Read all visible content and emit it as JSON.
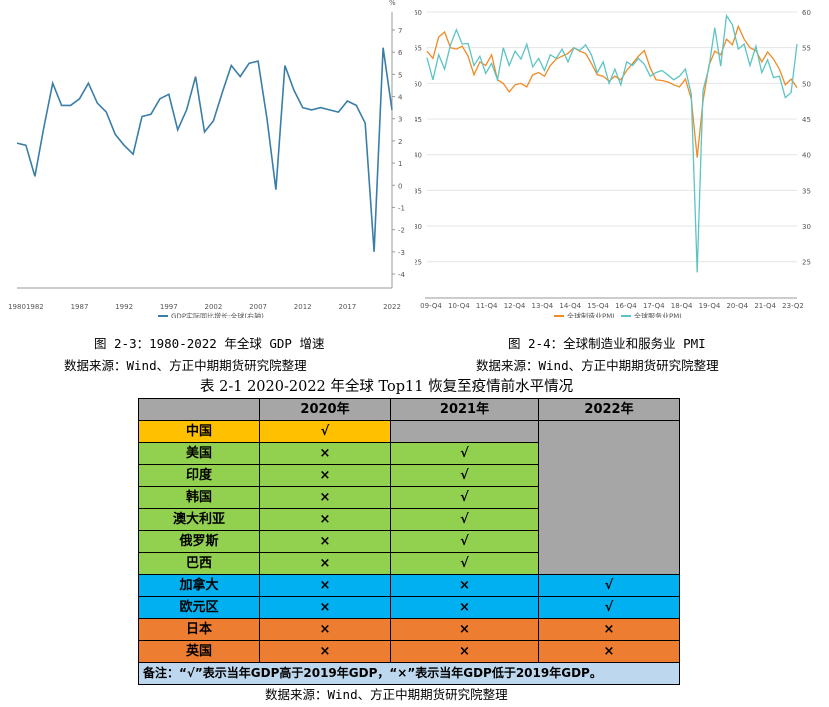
{
  "chart_data": [
    {
      "type": "line",
      "series": [
        {
          "name": "GDP实际同比增长:全球(右轴)",
          "values": [
            1.9,
            1.8,
            0.4,
            2.6,
            4.6,
            3.6,
            3.6,
            3.9,
            4.6,
            3.7,
            3.3,
            2.3,
            1.8,
            1.4,
            3.1,
            3.2,
            3.9,
            4.1,
            2.5,
            3.4,
            4.9,
            2.4,
            2.9,
            4.2,
            5.4,
            4.9,
            5.5,
            5.6,
            3.0,
            -0.2,
            5.4,
            4.3,
            3.5,
            3.4,
            3.5,
            3.4,
            3.3,
            3.8,
            3.6,
            2.8,
            -3.0,
            6.2,
            3.4
          ]
        }
      ],
      "x": [
        1980,
        1981,
        1982,
        1983,
        1984,
        1985,
        1986,
        1987,
        1988,
        1989,
        1990,
        1991,
        1992,
        1993,
        1994,
        1995,
        1996,
        1997,
        1998,
        1999,
        2000,
        2001,
        2002,
        2003,
        2004,
        2005,
        2006,
        2007,
        2008,
        2009,
        2010,
        2011,
        2012,
        2013,
        2014,
        2015,
        2016,
        2017,
        2018,
        2019,
        2020,
        2021,
        2022
      ],
      "xticks": [
        "1980",
        "1982",
        "1987",
        "1992",
        "1997",
        "2002",
        "2007",
        "2012",
        "2017",
        "2022"
      ],
      "yticks": [
        "-4",
        "-3",
        "-2",
        "-1",
        "0",
        "1",
        "2",
        "3",
        "4",
        "5",
        "6",
        "7"
      ],
      "ylim": [
        -4,
        7
      ],
      "yunit": "%"
    },
    {
      "type": "line",
      "series": [
        {
          "name": "全球制造业PMI",
          "values": [
            54.5,
            53.5,
            56.5,
            57.2,
            55.0,
            54.8,
            55.2,
            53.8,
            51.2,
            53.0,
            52.5,
            54.0,
            50.5,
            50.0,
            48.8,
            49.8,
            50.0,
            49.5,
            51.2,
            51.5,
            51.0,
            52.5,
            53.4,
            53.8,
            54.2,
            55.0,
            54.5,
            54.2,
            52.8,
            51.2,
            51.0,
            50.3,
            51.0,
            50.5,
            51.8,
            52.8,
            53.8,
            54.6,
            52.2,
            50.5,
            50.4,
            50.2,
            49.8,
            49.5,
            50.6,
            47.8,
            39.6,
            47.5,
            52.5,
            54.5,
            54.0,
            56.2,
            55.4,
            58.0,
            56.2,
            55.0,
            54.6,
            53.0,
            54.4,
            53.4,
            52.0,
            49.8,
            50.6,
            49.4
          ]
        },
        {
          "name": "全球服务业PMI",
          "values": [
            53.6,
            50.5,
            54.0,
            52.0,
            55.4,
            57.5,
            55.5,
            55.6,
            52.5,
            53.8,
            51.4,
            52.8,
            50.5,
            55.0,
            52.5,
            54.5,
            53.4,
            55.5,
            52.3,
            53.5,
            51.8,
            54.0,
            53.5,
            54.8,
            53.0,
            55.0,
            54.6,
            55.4,
            54.0,
            51.5,
            53.0,
            50.0,
            52.0,
            49.8,
            53.0,
            52.5,
            53.5,
            52.7,
            51.0,
            51.5,
            51.8,
            51.2,
            50.5,
            51.0,
            52.0,
            48.5,
            23.5,
            49.0,
            52.2,
            57.8,
            52.4,
            59.5,
            58.2,
            54.8,
            55.5,
            52.5,
            55.2,
            51.5,
            53.3,
            50.8,
            51.0,
            48.0,
            48.7,
            55.5
          ]
        }
      ],
      "xticks": [
        "09-Q4",
        "10-Q4",
        "11-Q4",
        "12-Q4",
        "13-Q4",
        "14-Q4",
        "15-Q4",
        "16-Q4",
        "17-Q4",
        "18-Q4",
        "19-Q4",
        "20-Q4",
        "21-Q4",
        "23-Q2"
      ],
      "yticks": [
        "25",
        "30",
        "35",
        "40",
        "45",
        "50",
        "55",
        "60"
      ],
      "ylim": [
        23,
        60
      ]
    }
  ],
  "captions": {
    "fig3": "图 2-3：1980-2022 年全球 GDP 增速",
    "fig4": "图 2-4：全球制造业和服务业 PMI",
    "source_left": "数据来源：Wind、方正中期期货研究院整理",
    "source_right": "数据来源：Wind、方正中期期货研究院整理",
    "table_title": "表 2-1 2020-2022 年全球 Top11 恢复至疫情前水平情况",
    "source_bottom": "数据来源：Wind、方正中期期货研究院整理"
  },
  "table": {
    "headers": [
      "",
      "2020年",
      "2021年",
      "2022年"
    ],
    "rows": [
      {
        "country": "中国",
        "c2020": "√",
        "c2021": "",
        "c2022": ""
      },
      {
        "country": "美国",
        "c2020": "×",
        "c2021": "√",
        "c2022": ""
      },
      {
        "country": "印度",
        "c2020": "×",
        "c2021": "√",
        "c2022": ""
      },
      {
        "country": "韩国",
        "c2020": "×",
        "c2021": "√",
        "c2022": ""
      },
      {
        "country": "澳大利亚",
        "c2020": "×",
        "c2021": "√",
        "c2022": ""
      },
      {
        "country": "俄罗斯",
        "c2020": "×",
        "c2021": "√",
        "c2022": ""
      },
      {
        "country": "巴西",
        "c2020": "×",
        "c2021": "√",
        "c2022": ""
      },
      {
        "country": "加拿大",
        "c2020": "×",
        "c2021": "×",
        "c2022": "√"
      },
      {
        "country": "欧元区",
        "c2020": "×",
        "c2021": "×",
        "c2022": "√"
      },
      {
        "country": "日本",
        "c2020": "×",
        "c2021": "×",
        "c2022": "×"
      },
      {
        "country": "英国",
        "c2020": "×",
        "c2021": "×",
        "c2022": "×"
      }
    ],
    "note": "备注：“√”表示当年GDP高于2019年GDP，“×”表示当年GDP低于2019年GDP。"
  },
  "colors": {
    "gdp_line": "#3a7ea8",
    "manufacturing": "#f08a24",
    "services": "#5cc4c4",
    "grey": "#a6a6a6",
    "yellow": "#ffc000",
    "green": "#92d050",
    "blue": "#00b0f0",
    "orange": "#ed7d31",
    "note_bg": "#bdd7ee"
  }
}
